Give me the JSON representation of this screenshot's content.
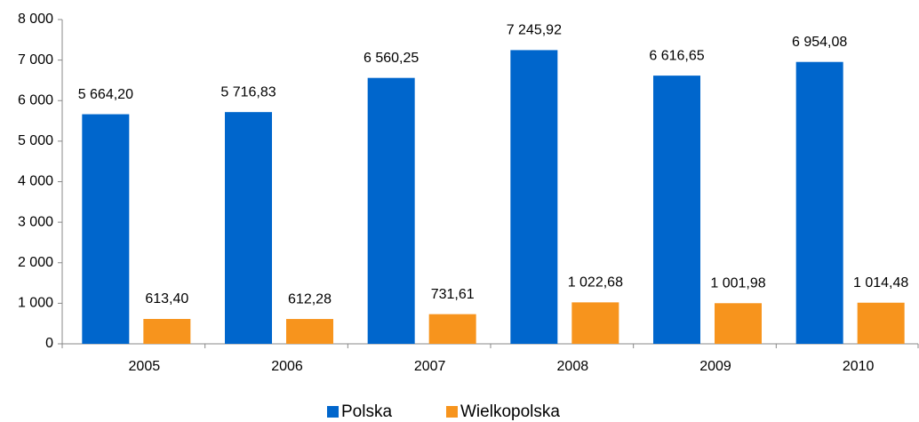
{
  "chart_data": {
    "type": "bar",
    "categories": [
      "2005",
      "2006",
      "2007",
      "2008",
      "2009",
      "2010"
    ],
    "series": [
      {
        "name": "Polska",
        "color": "#0066cc",
        "values": [
          5664.2,
          5716.83,
          6560.25,
          7245.92,
          6616.65,
          6954.08
        ],
        "value_labels": [
          "5 664,20",
          "5 716,83",
          "6 560,25",
          "7 245,92",
          "6 616,65",
          "6 954,08"
        ]
      },
      {
        "name": "Wielkopolska",
        "color": "#f7941d",
        "values": [
          613.4,
          612.28,
          731.61,
          1022.68,
          1001.98,
          1014.48
        ],
        "value_labels": [
          "613,40",
          "612,28",
          "731,61",
          "1 022,68",
          "1 001,98",
          "1 014,48"
        ]
      }
    ],
    "ylim": [
      0,
      8000
    ],
    "yticks": [
      0,
      {
        "value": 1000,
        "label": "1 000"
      },
      {
        "value": 2000,
        "label": "2 000"
      },
      {
        "value": 3000,
        "label": "3 000"
      },
      {
        "value": 4000,
        "label": "4 000"
      },
      {
        "value": 5000,
        "label": "5 000"
      },
      {
        "value": 6000,
        "label": "6 000"
      },
      {
        "value": 7000,
        "label": "7 000"
      },
      {
        "value": 8000,
        "label": "8 000"
      }
    ],
    "grid": false,
    "legend": "bottom"
  }
}
